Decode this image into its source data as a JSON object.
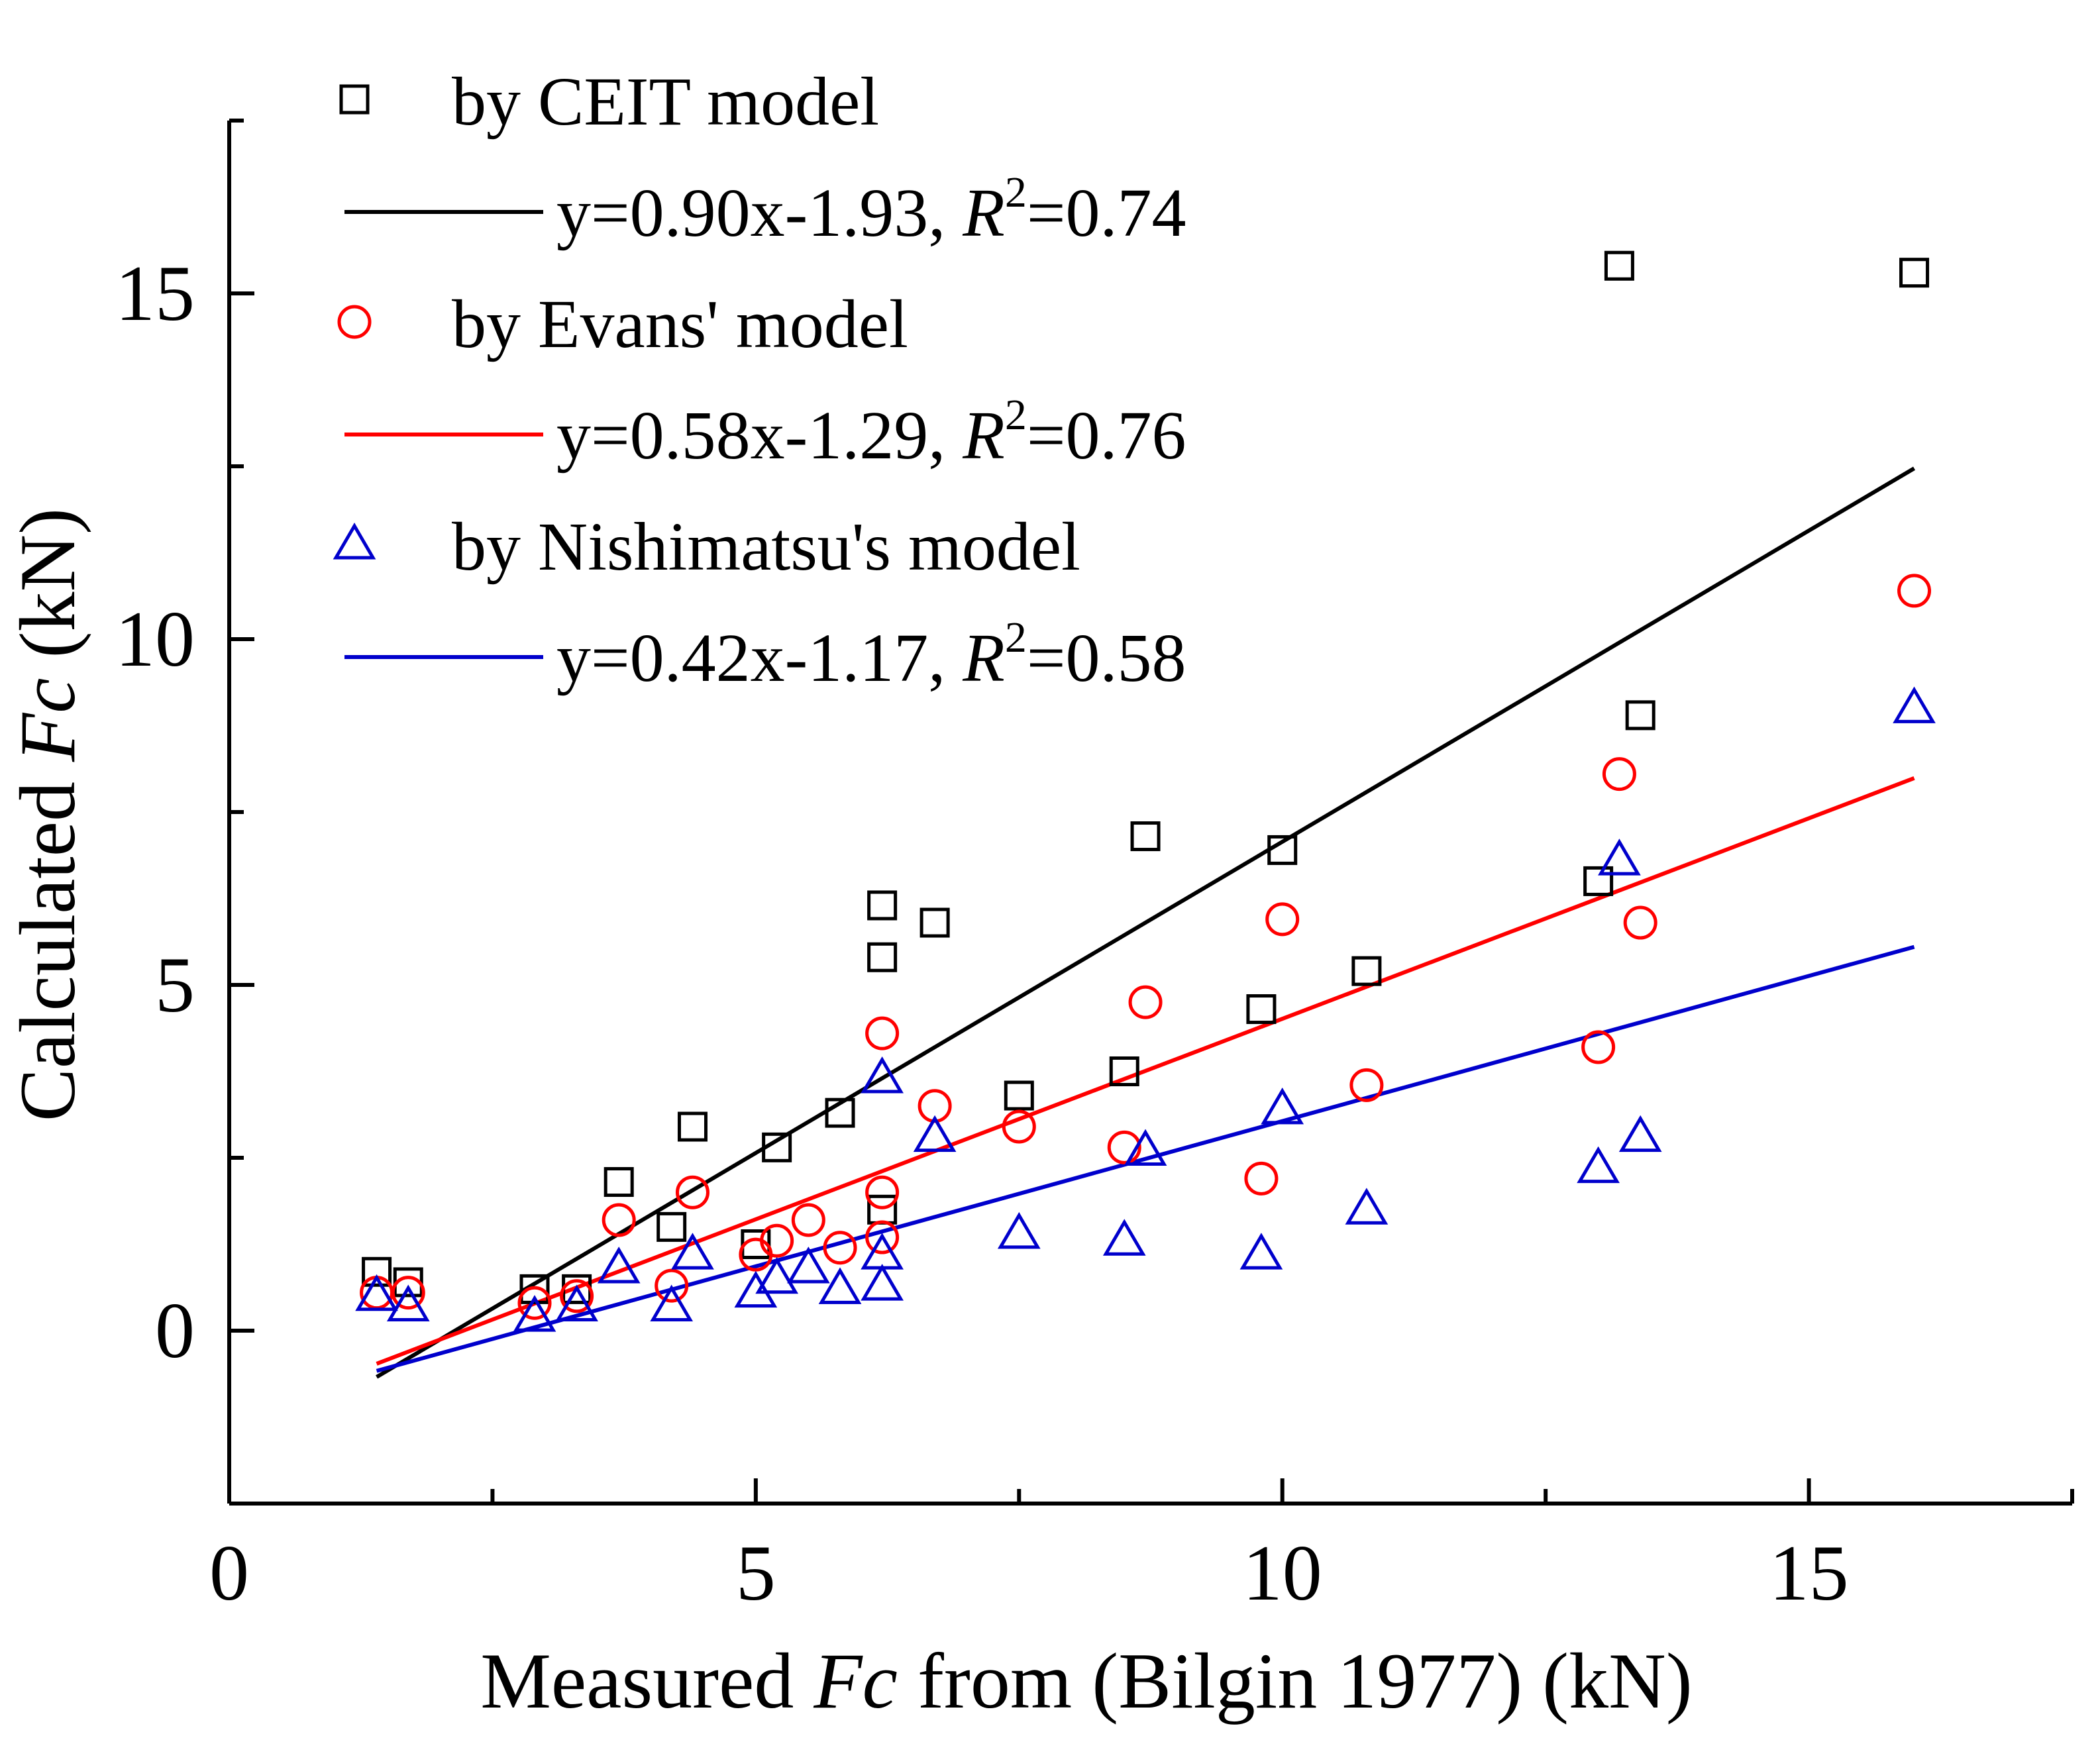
{
  "chart_data": {
    "type": "scatter",
    "title": "",
    "xlabel": {
      "pre": "Measured ",
      "ital": "Fc",
      "post": " from (Bilgin 1977) (kN)"
    },
    "ylabel": {
      "pre": "Calculated ",
      "ital": "Fc",
      "post": " (kN)"
    },
    "xlim": [
      0,
      17.5
    ],
    "ylim": [
      -2.5,
      17.5
    ],
    "xticks": [
      0,
      5,
      10,
      15
    ],
    "xticks_minor": [
      2.5,
      7.5,
      12.5,
      17.5
    ],
    "yticks": [
      0,
      5,
      10,
      15
    ],
    "yticks_minor": [
      -2.5,
      2.5,
      7.5,
      12.5,
      17.5
    ],
    "grid": false,
    "legend_position": "top-left",
    "series": [
      {
        "name": "by CEIT model",
        "marker": "square",
        "color": "#000000",
        "points": [
          [
            1.4,
            0.85
          ],
          [
            1.7,
            0.7
          ],
          [
            2.9,
            0.6
          ],
          [
            3.3,
            0.6
          ],
          [
            3.7,
            2.15
          ],
          [
            4.2,
            1.5
          ],
          [
            4.4,
            2.95
          ],
          [
            5.0,
            1.25
          ],
          [
            5.2,
            2.65
          ],
          [
            5.8,
            3.15
          ],
          [
            6.2,
            6.15
          ],
          [
            6.2,
            5.4
          ],
          [
            6.2,
            1.75
          ],
          [
            6.7,
            5.9
          ],
          [
            7.5,
            3.4
          ],
          [
            8.5,
            3.75
          ],
          [
            8.7,
            7.15
          ],
          [
            9.8,
            4.65
          ],
          [
            10.0,
            6.95
          ],
          [
            10.8,
            5.2
          ],
          [
            13.0,
            6.5
          ],
          [
            13.2,
            15.4
          ],
          [
            13.4,
            8.9
          ],
          [
            16.0,
            15.3
          ]
        ],
        "fit": {
          "slope": 0.9,
          "intercept": -1.93,
          "x_range": [
            1.4,
            16.0
          ]
        },
        "fit_label": {
          "pre": "y=0.90x-1.93, ",
          "r": "R",
          "sup": "2",
          "post": "=0.74"
        }
      },
      {
        "name": "by Evans' model",
        "marker": "circle",
        "color": "#ff0000",
        "points": [
          [
            1.4,
            0.55
          ],
          [
            1.7,
            0.55
          ],
          [
            2.9,
            0.4
          ],
          [
            3.3,
            0.5
          ],
          [
            3.7,
            1.6
          ],
          [
            4.2,
            0.65
          ],
          [
            4.4,
            2.0
          ],
          [
            5.0,
            1.1
          ],
          [
            5.2,
            1.3
          ],
          [
            5.5,
            1.6
          ],
          [
            5.8,
            1.2
          ],
          [
            6.2,
            4.3
          ],
          [
            6.2,
            2.0
          ],
          [
            6.2,
            1.35
          ],
          [
            6.7,
            3.25
          ],
          [
            7.5,
            2.95
          ],
          [
            8.5,
            2.65
          ],
          [
            8.7,
            4.75
          ],
          [
            9.8,
            2.2
          ],
          [
            10.0,
            5.95
          ],
          [
            10.8,
            3.55
          ],
          [
            13.0,
            4.1
          ],
          [
            13.2,
            8.05
          ],
          [
            13.4,
            5.9
          ],
          [
            16.0,
            10.7
          ]
        ],
        "fit": {
          "slope": 0.58,
          "intercept": -1.29,
          "x_range": [
            1.4,
            16.0
          ]
        },
        "fit_label": {
          "pre": "y=0.58x-1.29, ",
          "r": "R",
          "sup": "2",
          "post": "=0.76"
        }
      },
      {
        "name": "by Nishimatsu's model",
        "marker": "triangle",
        "color": "#0000cc",
        "points": [
          [
            1.4,
            0.5
          ],
          [
            1.7,
            0.35
          ],
          [
            2.9,
            0.2
          ],
          [
            3.3,
            0.35
          ],
          [
            3.7,
            0.9
          ],
          [
            4.2,
            0.35
          ],
          [
            4.4,
            1.1
          ],
          [
            5.0,
            0.55
          ],
          [
            5.2,
            0.75
          ],
          [
            5.5,
            0.9
          ],
          [
            5.8,
            0.6
          ],
          [
            6.2,
            3.65
          ],
          [
            6.2,
            1.1
          ],
          [
            6.2,
            0.65
          ],
          [
            6.7,
            2.8
          ],
          [
            7.5,
            1.4
          ],
          [
            8.5,
            1.3
          ],
          [
            8.7,
            2.6
          ],
          [
            9.8,
            1.1
          ],
          [
            10.0,
            3.2
          ],
          [
            10.8,
            1.75
          ],
          [
            13.0,
            2.35
          ],
          [
            13.2,
            6.8
          ],
          [
            13.4,
            2.8
          ],
          [
            16.0,
            9.0
          ]
        ],
        "fit": {
          "slope": 0.42,
          "intercept": -1.17,
          "x_range": [
            1.4,
            16.0
          ]
        },
        "fit_label": {
          "pre": "y=0.42x-1.17, ",
          "r": "R",
          "sup": "2",
          "post": "=0.58"
        }
      }
    ]
  }
}
